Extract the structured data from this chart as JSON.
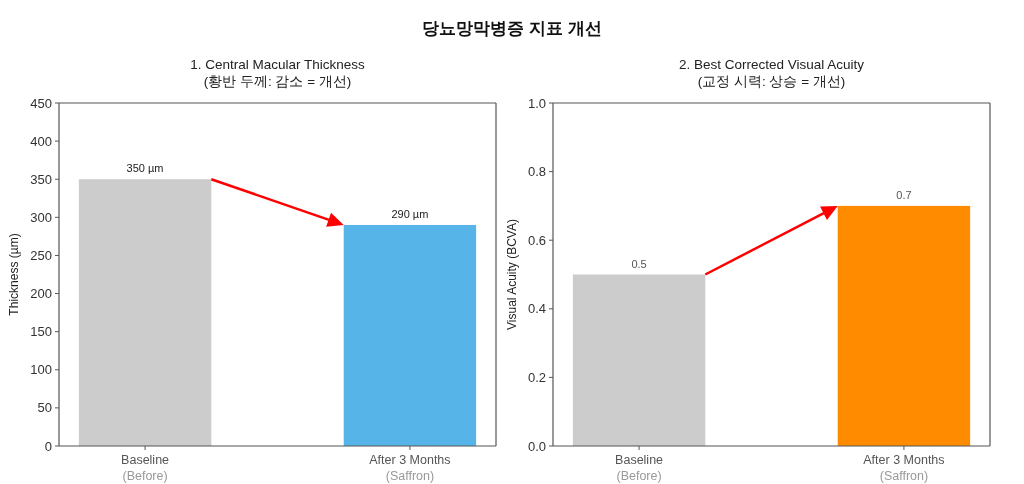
{
  "chart_data": [
    {
      "type": "other",
      "title": "당뇨망막병증 지표 개선"
    },
    {
      "type": "bar",
      "title": "1. Central Macular Thickness",
      "subtitle": "(황반 두께: 감소 = 개선)",
      "ylabel": "Thickness (µm)",
      "categories": [
        "Baseline\n(Before)",
        "After 3 Months\n(Saffron)"
      ],
      "values": [
        350,
        290
      ],
      "colors": [
        "#cccccc",
        "#56b4e9"
      ],
      "value_labels": [
        "350 µm",
        "290 µm"
      ],
      "ylim": [
        0,
        450
      ],
      "yticks": [
        0,
        50,
        100,
        150,
        200,
        250,
        300,
        350,
        400,
        450
      ]
    },
    {
      "type": "bar",
      "title": "2. Best Corrected Visual Acuity",
      "subtitle": "(교정 시력: 상승 = 개선)",
      "ylabel": "Visual Acuity (BCVA)",
      "categories": [
        "Baseline\n(Before)",
        "After 3 Months\n(Saffron)"
      ],
      "values": [
        0.5,
        0.7
      ],
      "colors": [
        "#cccccc",
        "#ff8c00"
      ],
      "data_labels": true,
      "ylim": [
        0,
        1.0
      ],
      "yticks": [
        {
          "value": 0,
          "label": "0.0"
        },
        0.2,
        0.4,
        0.6,
        0.8,
        {
          "value": 1,
          "label": "1.0"
        }
      ]
    }
  ]
}
